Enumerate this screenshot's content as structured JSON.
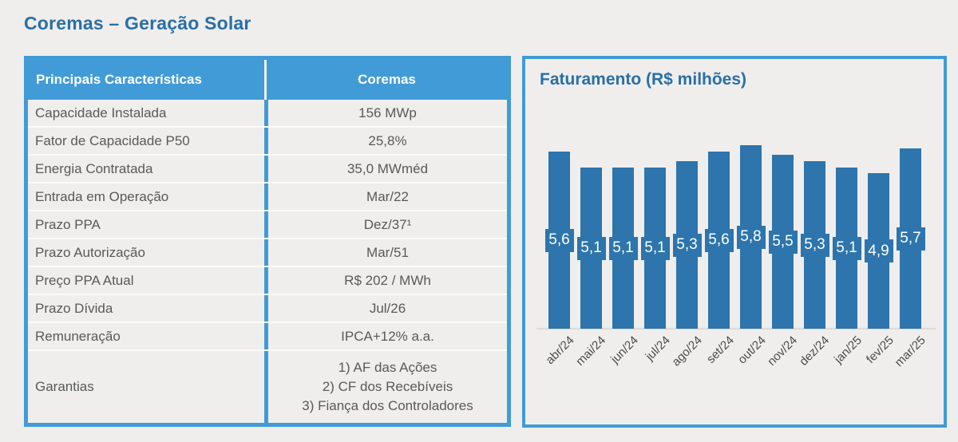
{
  "page": {
    "title": "Coremas – Geração Solar",
    "background_color": "#efeeec"
  },
  "colors": {
    "accent_blue": "#419bd6",
    "bar_blue": "#2d75ac",
    "title_blue": "#2a6fa4",
    "body_text": "#58595b",
    "axis_text": "#4c4c4c",
    "header_text": "#ffffff"
  },
  "table": {
    "header": {
      "col1": "Principais Características",
      "col2": "Coremas"
    },
    "rows": [
      {
        "label": "Capacidade Instalada",
        "value": "156 MWp"
      },
      {
        "label": "Fator de Capacidade P50",
        "value": "25,8%"
      },
      {
        "label": "Energia Contratada",
        "value": "35,0 MWméd"
      },
      {
        "label": "Entrada em Operação",
        "value": "Mar/22"
      },
      {
        "label": "Prazo PPA",
        "value": "Dez/37¹"
      },
      {
        "label": "Prazo Autorização",
        "value": "Mar/51"
      },
      {
        "label": "Preço PPA Atual",
        "value": "R$ 202 / MWh"
      },
      {
        "label": "Prazo Dívida",
        "value": "Jul/26"
      },
      {
        "label": "Remuneração",
        "value": "IPCA+12% a.a."
      },
      {
        "label": "Garantias",
        "value_lines": [
          "1) AF das Ações",
          "2) CF dos Recebíveis",
          "3) Fiança dos Controladores"
        ]
      }
    ]
  },
  "chart_data": {
    "type": "bar",
    "title": "Faturamento (R$ milhões)",
    "categories": [
      "abr/24",
      "mai/24",
      "jun/24",
      "jul/24",
      "ago/24",
      "set/24",
      "out/24",
      "nov/24",
      "dez/24",
      "jan/25",
      "fev/25",
      "mar/25"
    ],
    "values": [
      5.6,
      5.1,
      5.1,
      5.1,
      5.3,
      5.6,
      5.8,
      5.5,
      5.3,
      5.1,
      4.9,
      5.7
    ],
    "value_labels": [
      "5,6",
      "5,1",
      "5,1",
      "5,1",
      "5,3",
      "5,6",
      "5,8",
      "5,5",
      "5,3",
      "5,1",
      "4,9",
      "5,7"
    ],
    "xlabel": "",
    "ylabel": "",
    "ylim": [
      0,
      6.5
    ],
    "grid": false,
    "legend": false,
    "bar_color": "#2d75ac",
    "value_label_style": "white text in blue tag centered vertically on each bar",
    "x_tick_rotation": -45
  }
}
